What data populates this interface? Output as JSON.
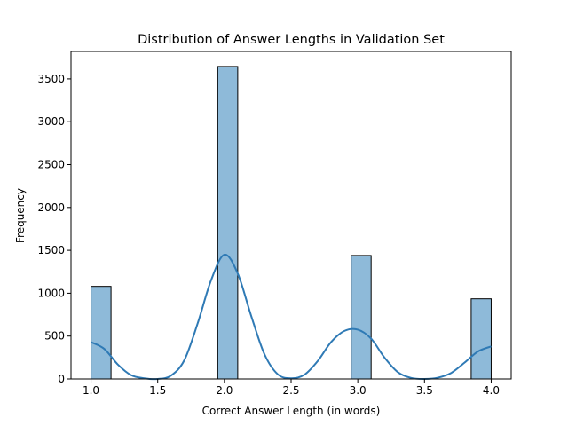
{
  "chart_data": {
    "type": "bar",
    "title": "Distribution of Answer Lengths in Validation Set",
    "xlabel": "Correct Answer Length (in words)",
    "ylabel": "Frequency",
    "xlim": [
      0.85,
      4.15
    ],
    "ylim": [
      0,
      3820
    ],
    "x_ticks": [
      "1.0",
      "1.5",
      "2.0",
      "2.5",
      "3.0",
      "3.5",
      "4.0"
    ],
    "y_ticks": [
      "0",
      "500",
      "1000",
      "1500",
      "2000",
      "2500",
      "3000",
      "3500"
    ],
    "bins": [
      {
        "x_start": 1.0,
        "x_end": 1.15,
        "value": 1080
      },
      {
        "x_start": 1.95,
        "x_end": 2.1,
        "value": 3645
      },
      {
        "x_start": 2.95,
        "x_end": 3.1,
        "value": 1440
      },
      {
        "x_start": 3.85,
        "x_end": 4.0,
        "value": 935
      }
    ],
    "kde": {
      "x": [
        1.0,
        1.1,
        1.2,
        1.3,
        1.4,
        1.5,
        1.6,
        1.7,
        1.8,
        1.9,
        2.0,
        2.1,
        2.2,
        2.3,
        2.4,
        2.5,
        2.6,
        2.7,
        2.8,
        2.9,
        3.0,
        3.1,
        3.2,
        3.3,
        3.4,
        3.5,
        3.6,
        3.7,
        3.8,
        3.9,
        4.0
      ],
      "y": [
        430,
        350,
        170,
        45,
        8,
        0,
        40,
        220,
        650,
        1150,
        1450,
        1230,
        740,
        290,
        55,
        8,
        50,
        210,
        430,
        560,
        575,
        470,
        250,
        80,
        12,
        0,
        15,
        70,
        190,
        320,
        380
      ]
    },
    "bar_color": "#8ebad9",
    "bar_edge": "#000000",
    "line_color": "#2f7ab5",
    "grid": false,
    "legend": false
  }
}
